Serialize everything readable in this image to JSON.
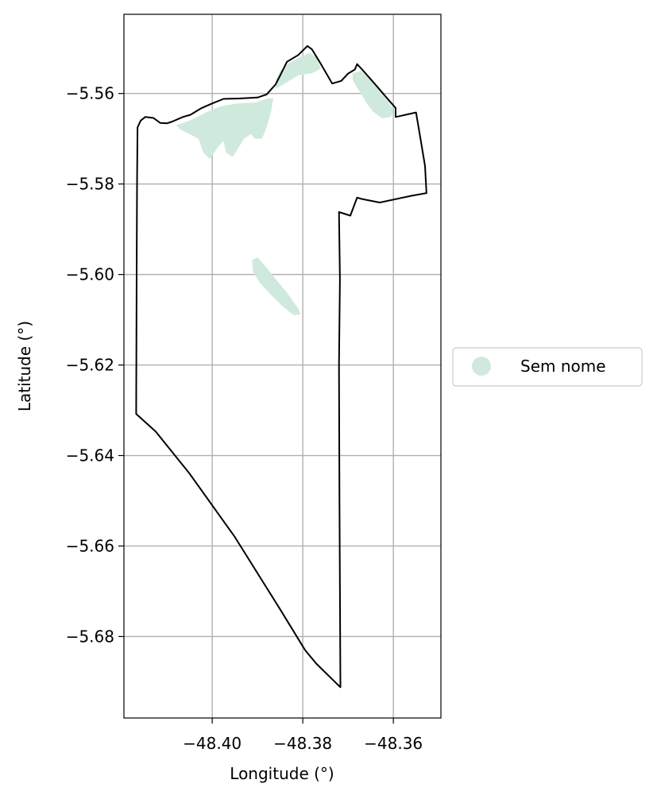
{
  "map": {
    "xlabel": "Longitude (°)",
    "ylabel": "Latitude (°)",
    "xlim": [
      -48.4195,
      -48.3495
    ],
    "ylim": [
      -5.698,
      -5.5425
    ],
    "x_ticks": [
      -48.4,
      -48.38,
      -48.36
    ],
    "x_tick_labels": [
      "−48.40",
      "−48.38",
      "−48.36"
    ],
    "y_ticks": [
      -5.56,
      -5.58,
      -5.6,
      -5.62,
      -5.64,
      -5.66,
      -5.68
    ],
    "y_tick_labels": [
      "−5.56",
      "−5.58",
      "−5.60",
      "−5.62",
      "−5.64",
      "−5.66",
      "−5.68"
    ],
    "grid": true,
    "boundary_color": "#000000",
    "region_color": "#cfeadc",
    "legend": {
      "placement": "right-outside",
      "entries": [
        {
          "label": "Sem nome",
          "color": "#cfeadc"
        }
      ]
    },
    "boundary": [
      [
        -48.4165,
        -5.5675
      ],
      [
        -48.4158,
        -5.566
      ],
      [
        -48.4148,
        -5.5652
      ],
      [
        -48.413,
        -5.5654
      ],
      [
        -48.4115,
        -5.5665
      ],
      [
        -48.41,
        -5.5666
      ],
      [
        -48.4088,
        -5.5662
      ],
      [
        -48.4065,
        -5.5652
      ],
      [
        -48.4048,
        -5.5647
      ],
      [
        -48.4025,
        -5.5633
      ],
      [
        -48.4,
        -5.5622
      ],
      [
        -48.3975,
        -5.5612
      ],
      [
        -48.394,
        -5.5611
      ],
      [
        -48.39,
        -5.5609
      ],
      [
        -48.388,
        -5.5602
      ],
      [
        -48.386,
        -5.558
      ],
      [
        -48.385,
        -5.556
      ],
      [
        -48.3835,
        -5.553
      ],
      [
        -48.381,
        -5.5515
      ],
      [
        -48.379,
        -5.5495
      ],
      [
        -48.378,
        -5.5502
      ],
      [
        -48.376,
        -5.5535
      ],
      [
        -48.3735,
        -5.5578
      ],
      [
        -48.3715,
        -5.5572
      ],
      [
        -48.37,
        -5.5556
      ],
      [
        -48.3685,
        -5.5547
      ],
      [
        -48.368,
        -5.5535
      ],
      [
        -48.367,
        -5.5546
      ],
      [
        -48.364,
        -5.558
      ],
      [
        -48.361,
        -5.5615
      ],
      [
        -48.3595,
        -5.5632
      ],
      [
        -48.3595,
        -5.5652
      ],
      [
        -48.355,
        -5.5642
      ],
      [
        -48.354,
        -5.57
      ],
      [
        -48.353,
        -5.576
      ],
      [
        -48.3527,
        -5.582
      ],
      [
        -48.356,
        -5.5826
      ],
      [
        -48.363,
        -5.5841
      ],
      [
        -48.367,
        -5.5833
      ],
      [
        -48.368,
        -5.583
      ],
      [
        -48.3695,
        -5.587
      ],
      [
        -48.372,
        -5.5862
      ],
      [
        -48.3718,
        -5.601
      ],
      [
        -48.372,
        -5.62
      ],
      [
        -48.3719,
        -5.65
      ],
      [
        -48.3718,
        -5.67
      ],
      [
        -48.3717,
        -5.6912
      ],
      [
        -48.377,
        -5.686
      ],
      [
        -48.3795,
        -5.683
      ],
      [
        -48.385,
        -5.674
      ],
      [
        -48.395,
        -5.658
      ],
      [
        -48.405,
        -5.644
      ],
      [
        -48.4125,
        -5.6347
      ],
      [
        -48.4168,
        -5.6308
      ],
      [
        -48.4167,
        -5.6
      ],
      [
        -48.4166,
        -5.58
      ],
      [
        -48.4165,
        -5.5675
      ]
    ],
    "regions": [
      [
        [
          -48.408,
          -5.567
        ],
        [
          -48.405,
          -5.566
        ],
        [
          -48.401,
          -5.564
        ],
        [
          -48.398,
          -5.5628
        ],
        [
          -48.3945,
          -5.5622
        ],
        [
          -48.3905,
          -5.562
        ],
        [
          -48.388,
          -5.5612
        ],
        [
          -48.3865,
          -5.561
        ],
        [
          -48.387,
          -5.564
        ],
        [
          -48.388,
          -5.5675
        ],
        [
          -48.389,
          -5.57
        ],
        [
          -48.3905,
          -5.57
        ],
        [
          -48.3915,
          -5.569
        ],
        [
          -48.393,
          -5.57
        ],
        [
          -48.3945,
          -5.5725
        ],
        [
          -48.3955,
          -5.574
        ],
        [
          -48.397,
          -5.573
        ],
        [
          -48.3975,
          -5.5705
        ],
        [
          -48.3985,
          -5.5715
        ],
        [
          -48.4005,
          -5.5745
        ],
        [
          -48.402,
          -5.573
        ],
        [
          -48.403,
          -5.57
        ],
        [
          -48.405,
          -5.569
        ],
        [
          -48.407,
          -5.568
        ],
        [
          -48.408,
          -5.567
        ]
      ],
      [
        [
          -48.386,
          -5.557
        ],
        [
          -48.385,
          -5.555
        ],
        [
          -48.383,
          -5.5532
        ],
        [
          -48.381,
          -5.5522
        ],
        [
          -48.3785,
          -5.551
        ],
        [
          -48.377,
          -5.552
        ],
        [
          -48.376,
          -5.5545
        ],
        [
          -48.378,
          -5.5555
        ],
        [
          -48.381,
          -5.556
        ],
        [
          -48.3835,
          -5.5575
        ],
        [
          -48.386,
          -5.559
        ],
        [
          -48.386,
          -5.557
        ]
      ],
      [
        [
          -48.369,
          -5.5555
        ],
        [
          -48.367,
          -5.555
        ],
        [
          -48.365,
          -5.557
        ],
        [
          -48.363,
          -5.5595
        ],
        [
          -48.361,
          -5.562
        ],
        [
          -48.36,
          -5.5635
        ],
        [
          -48.3605,
          -5.5652
        ],
        [
          -48.3625,
          -5.5655
        ],
        [
          -48.3645,
          -5.564
        ],
        [
          -48.366,
          -5.562
        ],
        [
          -48.3675,
          -5.5595
        ],
        [
          -48.369,
          -5.557
        ],
        [
          -48.369,
          -5.5555
        ]
      ],
      [
        [
          -48.3912,
          -5.5968
        ],
        [
          -48.39,
          -5.5962
        ],
        [
          -48.388,
          -5.5985
        ],
        [
          -48.386,
          -5.601
        ],
        [
          -48.3835,
          -5.604
        ],
        [
          -48.381,
          -5.6075
        ],
        [
          -48.3805,
          -5.6088
        ],
        [
          -48.382,
          -5.609
        ],
        [
          -48.3845,
          -5.607
        ],
        [
          -48.387,
          -5.6045
        ],
        [
          -48.3895,
          -5.6018
        ],
        [
          -48.391,
          -5.5995
        ],
        [
          -48.3912,
          -5.5968
        ]
      ]
    ]
  }
}
